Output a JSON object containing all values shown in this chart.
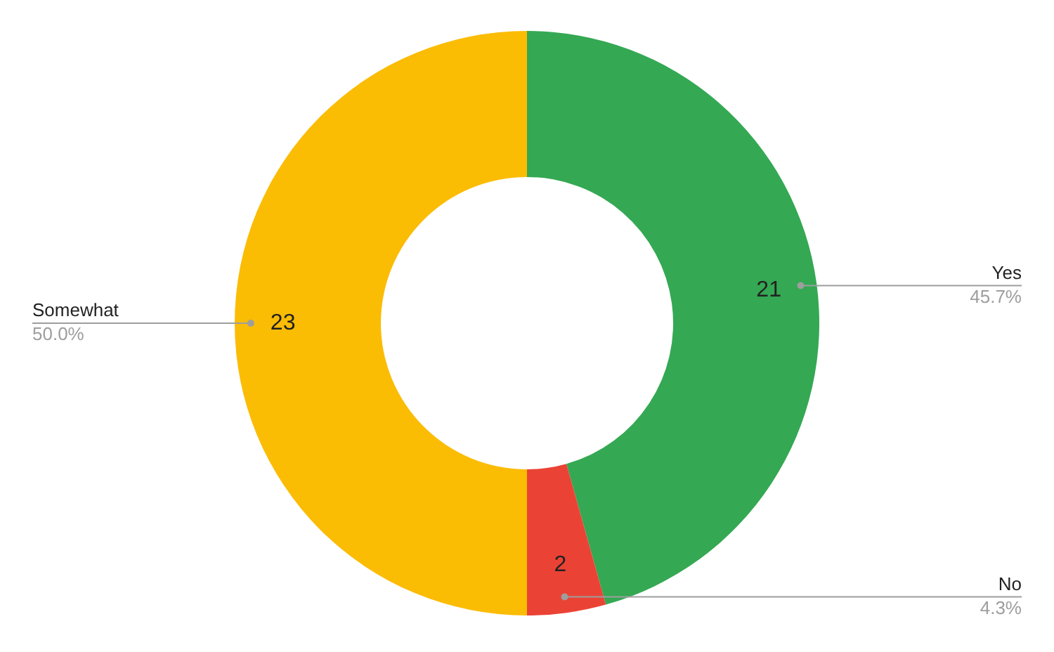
{
  "chart_data": {
    "type": "donut",
    "categories": [
      "Yes",
      "No",
      "Somewhat"
    ],
    "values": [
      21,
      2,
      23
    ],
    "colors": [
      "#34a853",
      "#ea4335",
      "#fbbc04"
    ],
    "data_labels": true,
    "annotations": [
      "45.7%",
      "4.3%",
      "50.0%"
    ],
    "legend": false
  }
}
